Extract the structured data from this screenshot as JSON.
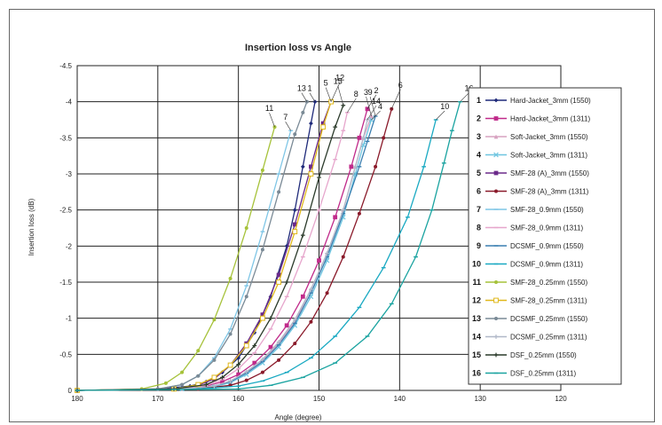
{
  "chart_data": {
    "type": "line",
    "title": "Insertion loss vs Angle",
    "xlabel": "Angle (degree)",
    "ylabel": "Insertion loss (dB)",
    "xlim": [
      180,
      120
    ],
    "ylim": [
      0,
      -4.5
    ],
    "x_ticks": [
      "180",
      "170",
      "160",
      "150",
      "140",
      "130",
      "120"
    ],
    "y_ticks": [
      "0",
      "-0.5",
      "-1",
      "-1.5",
      "-2",
      "-2.5",
      "-3",
      "-3.5",
      "-4",
      "-4.5"
    ],
    "grid": true,
    "legend_position": "right",
    "series": [
      {
        "id": "1",
        "name": "Hard-Jacket_3mm (1550)",
        "color": "#1f2a7a",
        "marker": "diamond",
        "x": [
          180,
          170,
          166,
          164,
          162,
          160,
          158,
          156,
          154,
          153,
          152,
          151,
          150.5
        ],
        "y": [
          0,
          -0.02,
          -0.06,
          -0.12,
          -0.25,
          -0.45,
          -0.8,
          -1.3,
          -2.0,
          -2.5,
          -3.1,
          -3.7,
          -4.0
        ]
      },
      {
        "id": "2",
        "name": "Hard-Jacket_3mm (1311)",
        "color": "#c02a8a",
        "marker": "square",
        "x": [
          180,
          168,
          164,
          162,
          160,
          158,
          156,
          154,
          152,
          150,
          148,
          146,
          145,
          144
        ],
        "y": [
          0,
          -0.02,
          -0.06,
          -0.12,
          -0.22,
          -0.38,
          -0.6,
          -0.9,
          -1.3,
          -1.8,
          -2.4,
          -3.1,
          -3.5,
          -3.9
        ]
      },
      {
        "id": "3",
        "name": "Soft-Jacket_3mm (1550)",
        "color": "#d7a2c0",
        "marker": "triangle",
        "x": [
          180,
          167,
          163,
          161,
          159,
          157,
          155,
          153,
          151,
          149,
          147,
          145.5,
          144.5,
          143.5
        ],
        "y": [
          0,
          -0.02,
          -0.06,
          -0.13,
          -0.25,
          -0.42,
          -0.65,
          -0.95,
          -1.4,
          -1.9,
          -2.5,
          -3.1,
          -3.5,
          -3.8
        ]
      },
      {
        "id": "4",
        "name": "Soft-Jacket_3mm (1311)",
        "color": "#6ec5e0",
        "marker": "x",
        "x": [
          180,
          167,
          163,
          161,
          159,
          157,
          155,
          153,
          151,
          149,
          147,
          145.5,
          144.5,
          143.5
        ],
        "y": [
          0,
          -0.02,
          -0.05,
          -0.11,
          -0.22,
          -0.38,
          -0.6,
          -0.9,
          -1.3,
          -1.8,
          -2.4,
          -3.0,
          -3.4,
          -3.75
        ]
      },
      {
        "id": "5",
        "name": "SMF-28 (A)_3mm (1550)",
        "color": "#6b2a8a",
        "marker": "square",
        "x": [
          180,
          168,
          165,
          163,
          161,
          159,
          157,
          155,
          153,
          151,
          149.5,
          148.5
        ],
        "y": [
          0,
          -0.02,
          -0.07,
          -0.16,
          -0.35,
          -0.65,
          -1.05,
          -1.6,
          -2.3,
          -3.1,
          -3.7,
          -4.0
        ]
      },
      {
        "id": "6",
        "name": "SMF-28 (A)_3mm (1311)",
        "color": "#8a1a2a",
        "marker": "circle",
        "x": [
          180,
          165,
          161,
          159,
          157,
          155,
          153,
          151,
          149,
          147,
          145,
          143,
          142,
          141
        ],
        "y": [
          0,
          -0.02,
          -0.07,
          -0.14,
          -0.25,
          -0.42,
          -0.65,
          -0.95,
          -1.35,
          -1.85,
          -2.45,
          -3.1,
          -3.5,
          -3.9
        ]
      },
      {
        "id": "7",
        "name": "SMF-28_0.9mm (1550)",
        "color": "#7fc6e6",
        "marker": "dash",
        "x": [
          180,
          170,
          167,
          165,
          163,
          161,
          159,
          157,
          155,
          153.5
        ],
        "y": [
          0,
          -0.02,
          -0.08,
          -0.2,
          -0.45,
          -0.85,
          -1.45,
          -2.2,
          -3.0,
          -3.6
        ]
      },
      {
        "id": "8",
        "name": "SMF-28_0.9mm (1311)",
        "color": "#e6a6cc",
        "marker": "dash",
        "x": [
          180,
          168,
          164,
          162,
          160,
          158,
          156,
          154,
          152,
          150,
          148,
          147,
          146.5
        ],
        "y": [
          0,
          -0.02,
          -0.07,
          -0.15,
          -0.3,
          -0.52,
          -0.85,
          -1.3,
          -1.85,
          -2.5,
          -3.2,
          -3.6,
          -3.85
        ]
      },
      {
        "id": "9",
        "name": "DCSMF_0.9mm (1550)",
        "color": "#3a7fb0",
        "marker": "dash",
        "x": [
          180,
          167,
          163,
          161,
          159,
          157,
          155,
          153,
          151,
          149,
          147,
          145,
          144,
          143
        ],
        "y": [
          0,
          -0.02,
          -0.06,
          -0.12,
          -0.24,
          -0.4,
          -0.63,
          -0.93,
          -1.35,
          -1.85,
          -2.45,
          -3.1,
          -3.45,
          -3.8
        ]
      },
      {
        "id": "10",
        "name": "DCSMF_0.9mm (1311)",
        "color": "#19a9c2",
        "marker": "dash",
        "x": [
          180,
          165,
          160,
          157,
          154,
          151,
          148,
          145,
          142,
          139,
          137,
          135.5
        ],
        "y": [
          0,
          -0.02,
          -0.06,
          -0.13,
          -0.25,
          -0.45,
          -0.75,
          -1.15,
          -1.7,
          -2.4,
          -3.1,
          -3.75
        ]
      },
      {
        "id": "11",
        "name": "SMF-28_0.25mm (1550)",
        "color": "#a6c23a",
        "marker": "circle",
        "x": [
          180,
          172,
          169,
          167,
          165,
          163,
          161,
          159,
          157,
          155.5
        ],
        "y": [
          0,
          -0.02,
          -0.1,
          -0.25,
          -0.55,
          -0.98,
          -1.55,
          -2.25,
          -3.05,
          -3.65
        ]
      },
      {
        "id": "12",
        "name": "SMF-28_0.25mm (1311)",
        "color": "#e0b81a",
        "marker": "square-open",
        "x": [
          180,
          168,
          165,
          163,
          161,
          159,
          157,
          155,
          153,
          151,
          149.5,
          148.5
        ],
        "y": [
          0,
          -0.02,
          -0.08,
          -0.18,
          -0.35,
          -0.62,
          -1.0,
          -1.5,
          -2.2,
          -3.0,
          -3.65,
          -4.0
        ]
      },
      {
        "id": "13",
        "name": "DCSMF_0.25mm (1550)",
        "color": "#7a8a96",
        "marker": "circle",
        "x": [
          180,
          170,
          167,
          165,
          163,
          161,
          159,
          157,
          155,
          153,
          152,
          151.5
        ],
        "y": [
          0,
          -0.02,
          -0.08,
          -0.2,
          -0.42,
          -0.78,
          -1.3,
          -1.95,
          -2.75,
          -3.55,
          -3.85,
          -4.0
        ]
      },
      {
        "id": "14",
        "name": "DCSMF_0.25mm (1311)",
        "color": "#b0b8c8",
        "marker": "plus",
        "x": [
          180,
          167,
          163,
          161,
          159,
          157,
          155,
          153,
          151,
          149,
          147,
          145.5,
          144.5,
          144
        ],
        "y": [
          0,
          -0.02,
          -0.06,
          -0.13,
          -0.26,
          -0.43,
          -0.67,
          -0.98,
          -1.4,
          -1.9,
          -2.5,
          -3.1,
          -3.5,
          -3.75
        ]
      },
      {
        "id": "15",
        "name": "DSF_0.25mm (1550)",
        "color": "#2a3a2a",
        "marker": "plus",
        "x": [
          180,
          168,
          164,
          162,
          160,
          158,
          156,
          154,
          152,
          150,
          148,
          147
        ],
        "y": [
          0,
          -0.02,
          -0.08,
          -0.18,
          -0.36,
          -0.62,
          -1.0,
          -1.5,
          -2.15,
          -2.95,
          -3.65,
          -3.95
        ]
      },
      {
        "id": "16",
        "name": "DSF_0.25mm (1311)",
        "color": "#1aa3a0",
        "marker": "dash",
        "x": [
          180,
          160,
          156,
          152,
          148,
          144,
          141,
          138,
          136,
          134.5,
          133.5,
          132.5
        ],
        "y": [
          0,
          -0.02,
          -0.07,
          -0.18,
          -0.38,
          -0.75,
          -1.2,
          -1.85,
          -2.5,
          -3.15,
          -3.6,
          -4.0
        ]
      }
    ]
  }
}
